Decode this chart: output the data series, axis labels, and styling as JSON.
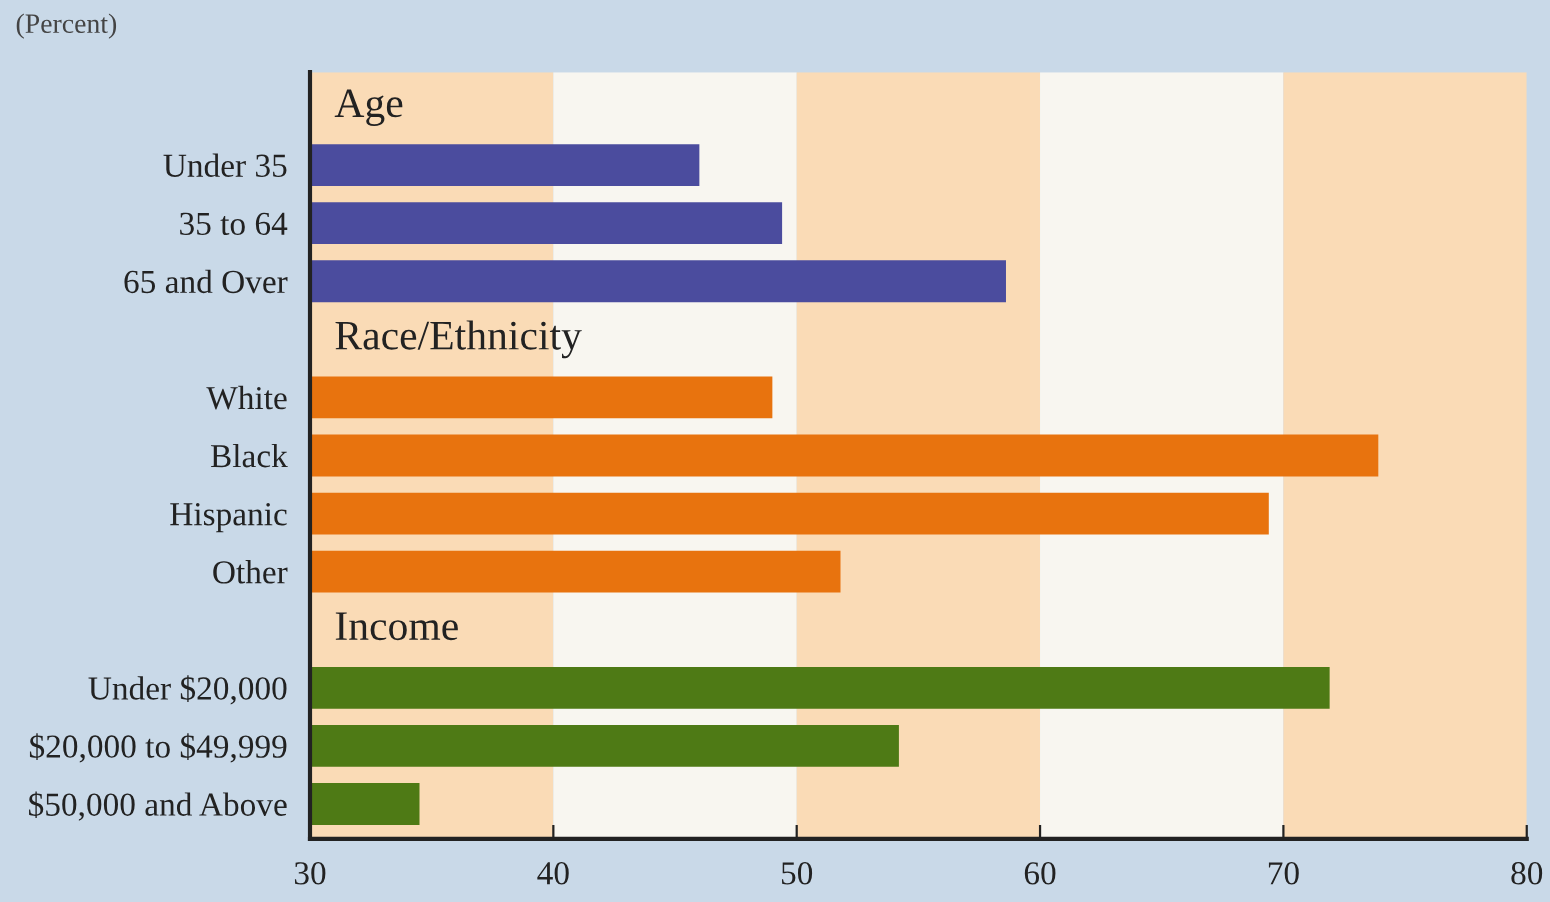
{
  "chart_data": {
    "type": "bar",
    "orientation": "horizontal",
    "categories": [
      null,
      "Under 35",
      "35 to 64",
      "65 and Over",
      null,
      "White",
      "Black",
      "Hispanic",
      "Other",
      null,
      "Under $20,000",
      "$20,000 to $49,999",
      "$50,000 and Above"
    ],
    "series": [
      {
        "name": "Age",
        "color": "#4b4c9e",
        "values": [
          null,
          46.0,
          49.4,
          58.6,
          null,
          null,
          null,
          null,
          null,
          null,
          null,
          null,
          null
        ]
      },
      {
        "name": "Race/Ethnicity",
        "color": "#e8730e",
        "values": [
          null,
          null,
          null,
          null,
          null,
          49.0,
          73.9,
          69.4,
          51.8,
          null,
          null,
          null,
          null
        ]
      },
      {
        "name": "Income",
        "color": "#4e7a15",
        "values": [
          null,
          null,
          null,
          null,
          null,
          null,
          null,
          null,
          null,
          null,
          71.9,
          54.2,
          34.5
        ]
      }
    ],
    "xlim": [
      30,
      80
    ],
    "xticks": [
      30,
      40,
      50,
      60,
      70,
      80
    ],
    "bands": [
      {
        "axis": "x",
        "from": 30,
        "to": 40,
        "color": "#fadbb6"
      },
      {
        "axis": "x",
        "from": 40,
        "to": 50,
        "color": "#f8f6f0"
      },
      {
        "axis": "x",
        "from": 50,
        "to": 60,
        "color": "#fadbb6"
      },
      {
        "axis": "x",
        "from": 60,
        "to": 70,
        "color": "#f8f6f0"
      },
      {
        "axis": "x",
        "from": 70,
        "to": 80,
        "color": "#fadbb6"
      }
    ],
    "annotations": [
      "(Percent)"
    ],
    "grid": false,
    "legend": false
  }
}
